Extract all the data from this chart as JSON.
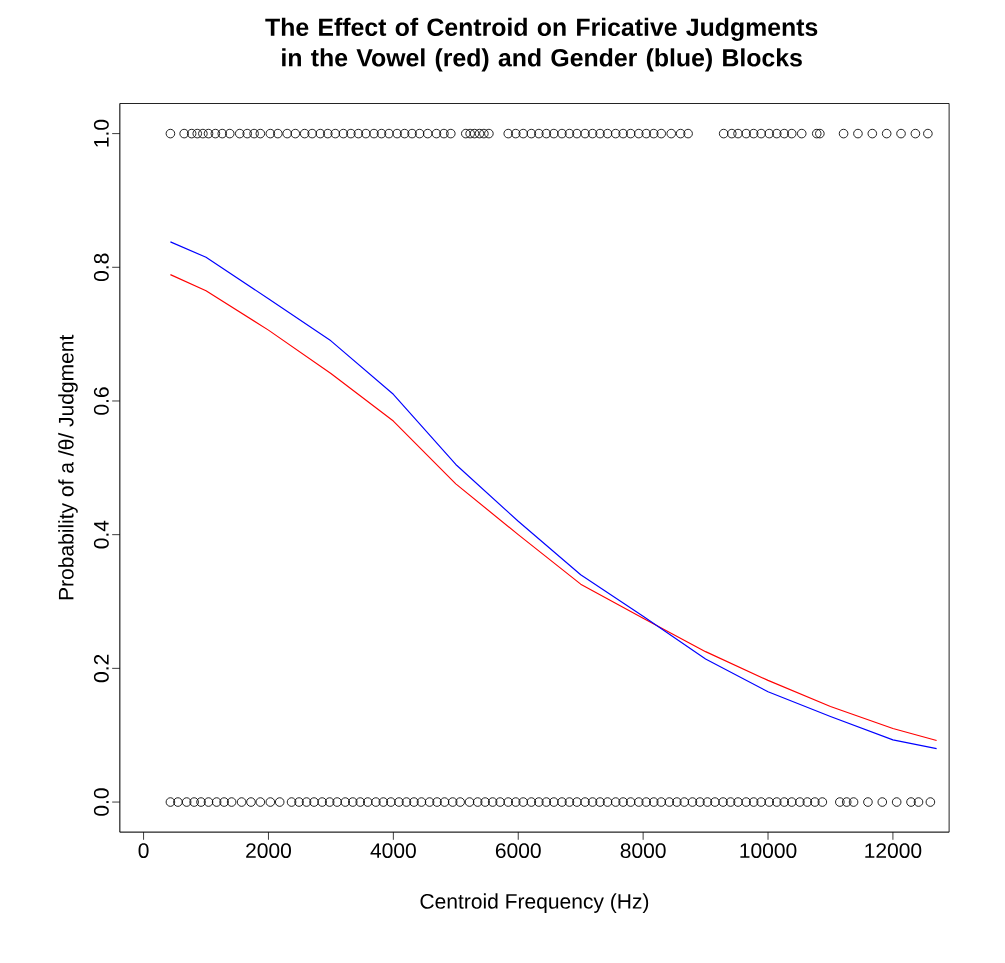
{
  "chart_data": {
    "type": "scatter",
    "title": "The Effect of Centroid on Fricative Judgments in the Vowel (red) and Gender (blue) Blocks",
    "xlabel": "Centroid Frequency (Hz)",
    "ylabel": "Probability of a /θ/ Judgment",
    "xlim": [
      -380,
      12900
    ],
    "ylim": [
      -0.045,
      1.045
    ],
    "xticks": [
      0,
      2000,
      4000,
      6000,
      8000,
      10000,
      12000
    ],
    "yticks": [
      {
        "value": 0,
        "label": "0.0"
      },
      {
        "value": 0.2,
        "label": "0.2"
      },
      {
        "value": 0.4,
        "label": "0.4"
      },
      {
        "value": 0.6,
        "label": "0.6"
      },
      {
        "value": 0.8,
        "label": "0.8"
      },
      {
        "value": 1,
        "label": "1.0"
      }
    ],
    "grid": false,
    "series": [
      {
        "marker": "circle",
        "color": "#000000",
        "x": [
          430,
          650,
          770,
          860,
          950,
          1040,
          1150,
          1260,
          1380,
          1540,
          1660,
          1770,
          1870,
          2030,
          2150,
          2300,
          2430,
          2580,
          2700,
          2830,
          2950,
          3070,
          3200,
          3320,
          3440,
          3560,
          3690,
          3810,
          3930,
          4060,
          4180,
          4300,
          4420,
          4550,
          4690,
          4810,
          4920,
          5160,
          5230,
          5300,
          5380,
          5450,
          5530,
          5840,
          5960,
          6080,
          6210,
          6330,
          6450,
          6570,
          6700,
          6820,
          6940,
          7070,
          7190,
          7310,
          7430,
          7560,
          7680,
          7800,
          7930,
          8050,
          8170,
          8290,
          8450,
          8600,
          8720,
          9290,
          9420,
          9520,
          9650,
          9770,
          9890,
          10020,
          10140,
          10260,
          10380,
          10540,
          10780,
          10830,
          11210,
          11440,
          11670,
          11900,
          12130,
          12360,
          12560
        ],
        "values": [
          1,
          1,
          1,
          1,
          1,
          1,
          1,
          1,
          1,
          1,
          1,
          1,
          1,
          1,
          1,
          1,
          1,
          1,
          1,
          1,
          1,
          1,
          1,
          1,
          1,
          1,
          1,
          1,
          1,
          1,
          1,
          1,
          1,
          1,
          1,
          1,
          1,
          1,
          1,
          1,
          1,
          1,
          1,
          1,
          1,
          1,
          1,
          1,
          1,
          1,
          1,
          1,
          1,
          1,
          1,
          1,
          1,
          1,
          1,
          1,
          1,
          1,
          1,
          1,
          1,
          1,
          1,
          1,
          1,
          1,
          1,
          1,
          1,
          1,
          1,
          1,
          1,
          1,
          1,
          1,
          1,
          1,
          1,
          1,
          1,
          1,
          1
        ]
      },
      {
        "marker": "circle",
        "color": "#000000",
        "x": [
          430,
          550,
          690,
          810,
          920,
          1040,
          1170,
          1290,
          1410,
          1570,
          1720,
          1870,
          2030,
          2180,
          2370,
          2490,
          2610,
          2730,
          2860,
          2980,
          3100,
          3230,
          3350,
          3470,
          3590,
          3720,
          3840,
          3960,
          4090,
          4210,
          4330,
          4450,
          4580,
          4700,
          4820,
          4950,
          5070,
          5220,
          5350,
          5470,
          5590,
          5710,
          5840,
          5960,
          6080,
          6210,
          6330,
          6450,
          6570,
          6700,
          6820,
          6940,
          7070,
          7190,
          7310,
          7430,
          7560,
          7680,
          7800,
          7930,
          8050,
          8170,
          8290,
          8420,
          8540,
          8660,
          8790,
          8910,
          9030,
          9150,
          9280,
          9400,
          9520,
          9650,
          9770,
          9890,
          10020,
          10140,
          10260,
          10380,
          10510,
          10630,
          10750,
          10870,
          11150,
          11260,
          11370,
          11600,
          11830,
          12060,
          12290,
          12410,
          12600
        ],
        "values": [
          0,
          0,
          0,
          0,
          0,
          0,
          0,
          0,
          0,
          0,
          0,
          0,
          0,
          0,
          0,
          0,
          0,
          0,
          0,
          0,
          0,
          0,
          0,
          0,
          0,
          0,
          0,
          0,
          0,
          0,
          0,
          0,
          0,
          0,
          0,
          0,
          0,
          0,
          0,
          0,
          0,
          0,
          0,
          0,
          0,
          0,
          0,
          0,
          0,
          0,
          0,
          0,
          0,
          0,
          0,
          0,
          0,
          0,
          0,
          0,
          0,
          0,
          0,
          0,
          0,
          0,
          0,
          0,
          0,
          0,
          0,
          0,
          0,
          0,
          0,
          0,
          0,
          0,
          0,
          0,
          0,
          0,
          0,
          0,
          0,
          0,
          0,
          0,
          0,
          0,
          0,
          0,
          0
        ]
      },
      {
        "type": "line",
        "color": "#ff0000",
        "x": [
          430,
          1000,
          2000,
          3000,
          4000,
          5000,
          6000,
          7000,
          8000,
          9000,
          10000,
          11000,
          12000,
          12700
        ],
        "values": [
          0.789,
          0.765,
          0.706,
          0.641,
          0.57,
          0.476,
          0.4,
          0.326,
          0.275,
          0.225,
          0.182,
          0.143,
          0.11,
          0.092
        ]
      },
      {
        "type": "line",
        "color": "#0000ff",
        "x": [
          430,
          1000,
          2000,
          3000,
          4000,
          5000,
          6000,
          7000,
          8000,
          9000,
          10000,
          11000,
          12000,
          12700
        ],
        "values": [
          0.838,
          0.815,
          0.753,
          0.69,
          0.61,
          0.505,
          0.42,
          0.34,
          0.278,
          0.214,
          0.165,
          0.128,
          0.093,
          0.08
        ]
      }
    ]
  }
}
